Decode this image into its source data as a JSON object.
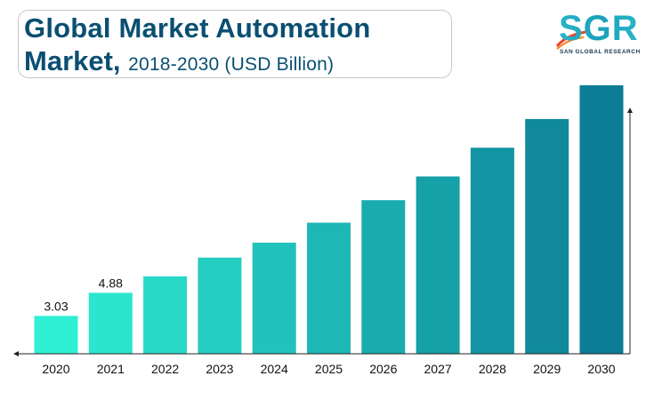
{
  "title": {
    "line1": "Global Market Automation",
    "line2_bold": "Market,",
    "line2_sub": "2018-2030 (USD Billion)"
  },
  "logo": {
    "text": "SGR",
    "subtitle": "SAN GLOBAL RESEARCH"
  },
  "colors": {
    "title": "#0a4f72",
    "bar_start": "#2ff0d4",
    "bar_end": "#0b7e95",
    "axis": "#222222"
  },
  "chart_data": {
    "type": "bar",
    "categories": [
      "2020",
      "2021",
      "2022",
      "2023",
      "2024",
      "2025",
      "2026",
      "2027",
      "2028",
      "2029",
      "2030"
    ],
    "values": [
      3.03,
      4.88,
      6.2,
      7.7,
      8.9,
      10.5,
      12.3,
      14.2,
      16.5,
      18.8,
      21.5
    ],
    "data_labels": [
      "3.03",
      "4.88",
      "",
      "",
      "",
      "",
      "",
      "",
      "",
      "",
      ""
    ],
    "ylim": [
      0,
      24.2
    ],
    "grid": false,
    "legend": "none"
  }
}
